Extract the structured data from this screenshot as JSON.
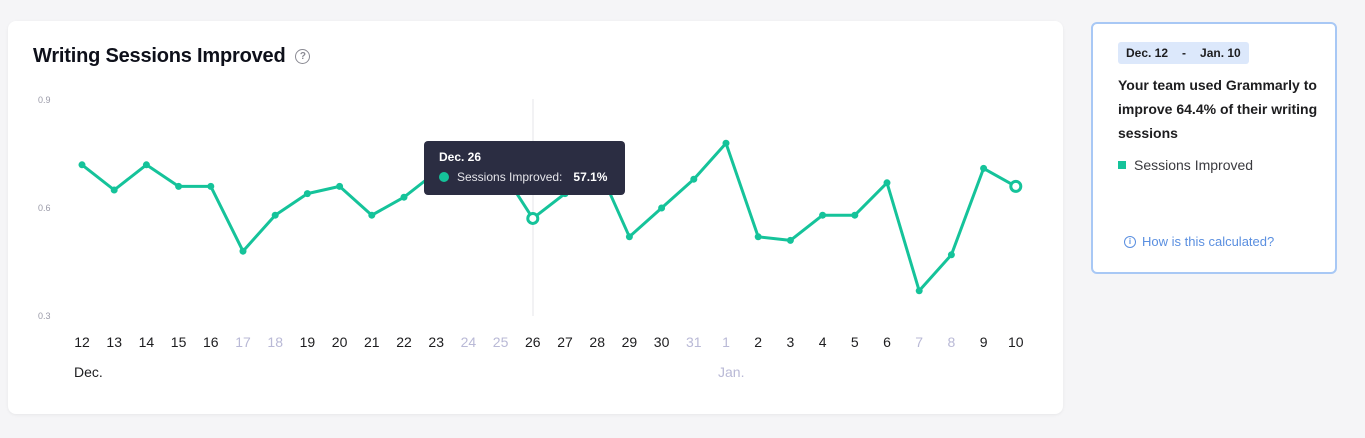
{
  "card": {
    "title": "Writing Sessions Improved",
    "help_icon": "question-circle-icon"
  },
  "tooltip": {
    "date": "Dec. 26",
    "label": "Sessions Improved:",
    "value": "57.1%"
  },
  "side_panel": {
    "range_start": "Dec. 12",
    "range_sep": "-",
    "range_end": "Jan. 10",
    "summary": "Your team used Grammarly to improve 64.4% of their writing sessions",
    "legend_label": "Sessions Improved",
    "link_text": "How is this calculated?",
    "link_icon": "info-circle-icon"
  },
  "colors": {
    "line": "#15c39a",
    "weekday_label": "#1d1d1f",
    "weekend_label": "#b9b9d6",
    "panel_border": "#a8c8f5",
    "link": "#5a8fe0"
  },
  "chart_data": {
    "type": "line",
    "title": "Writing Sessions Improved",
    "xlabel": "",
    "ylabel": "",
    "ylim": [
      0.3,
      0.9
    ],
    "yticks": [
      "0.9",
      "0.6",
      "0.3"
    ],
    "grid": false,
    "x": [
      "12",
      "13",
      "14",
      "15",
      "16",
      "17",
      "18",
      "19",
      "20",
      "21",
      "22",
      "23",
      "24",
      "25",
      "26",
      "27",
      "28",
      "29",
      "30",
      "31",
      "1",
      "2",
      "3",
      "4",
      "5",
      "6",
      "7",
      "8",
      "9",
      "10"
    ],
    "weekend": [
      false,
      false,
      false,
      false,
      false,
      true,
      true,
      false,
      false,
      false,
      false,
      false,
      true,
      true,
      false,
      false,
      false,
      false,
      false,
      true,
      true,
      false,
      false,
      false,
      false,
      false,
      true,
      true,
      false,
      false
    ],
    "month_labels": [
      {
        "at": 0,
        "text": "Dec.",
        "muted": false
      },
      {
        "at": 20,
        "text": "Jan.",
        "muted": true
      }
    ],
    "series": [
      {
        "name": "Sessions Improved",
        "values": [
          0.72,
          0.65,
          0.72,
          0.66,
          0.66,
          0.48,
          0.58,
          0.64,
          0.66,
          0.58,
          0.63,
          0.7,
          0.74,
          0.71,
          0.571,
          0.64,
          0.72,
          0.52,
          0.6,
          0.68,
          0.78,
          0.52,
          0.51,
          0.58,
          0.58,
          0.67,
          0.37,
          0.47,
          0.71,
          0.66
        ]
      }
    ],
    "highlight": [
      14,
      29
    ]
  }
}
